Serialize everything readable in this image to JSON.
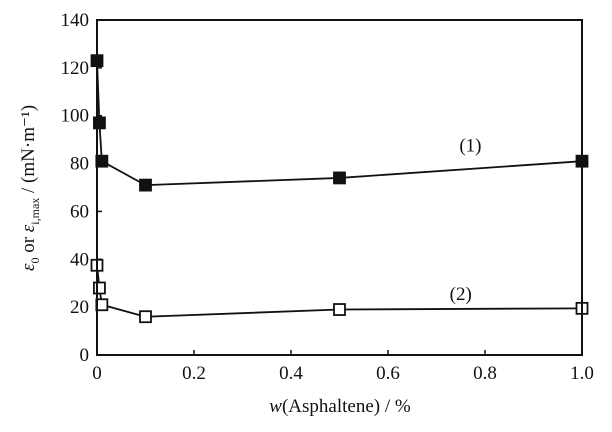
{
  "chart_data": {
    "type": "line",
    "title": "",
    "xlabel_italic": "w",
    "xlabel_rest": "(Asphaltene) / %",
    "ylabel_parts": {
      "eps0": "ε",
      "sub0": "0",
      "or": " or ",
      "epsi": "ε",
      "subi": "i,max",
      "unit": " / (mN·m⁻¹)"
    },
    "xlim": [
      0,
      1.0
    ],
    "ylim": [
      0,
      140
    ],
    "xticks": [
      "0",
      "0.2",
      "0.4",
      "0.6",
      "0.8",
      "1.0"
    ],
    "xtick_values": [
      0,
      0.2,
      0.4,
      0.6,
      0.8,
      1.0
    ],
    "yticks": [
      "0",
      "20",
      "40",
      "60",
      "80",
      "100",
      "120",
      "140"
    ],
    "ytick_values": [
      0,
      20,
      40,
      60,
      80,
      100,
      120,
      140
    ],
    "grid": false,
    "series": [
      {
        "name": "(1)",
        "marker": "filled-square",
        "color": "#111111",
        "x": [
          0,
          0.005,
          0.01,
          0.1,
          0.5,
          1.0
        ],
        "y": [
          123,
          97,
          81,
          71,
          74,
          81
        ]
      },
      {
        "name": "(2)",
        "marker": "open-square",
        "color": "#111111",
        "x": [
          0,
          0.005,
          0.01,
          0.1,
          0.5,
          1.0
        ],
        "y": [
          37.5,
          28,
          21,
          16,
          19,
          19.5
        ]
      }
    ],
    "annotations": [
      {
        "text": "(1)",
        "x": 0.77,
        "y": 85
      },
      {
        "text": "(2)",
        "x": 0.75,
        "y": 23
      }
    ]
  }
}
